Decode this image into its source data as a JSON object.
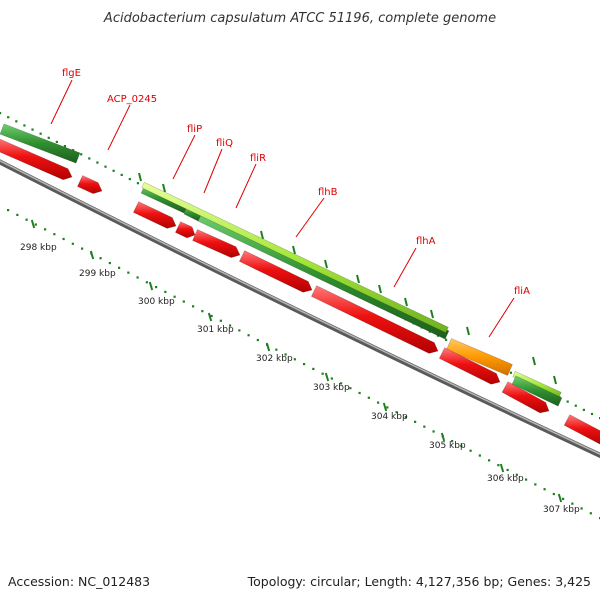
{
  "title": "Acidobacterium capsulatum ATCC 51196, complete genome",
  "footer": {
    "accession": "Accession: NC_012483",
    "summary": "Topology: circular; Length: 4,127,356 bp; Genes: 3,425"
  },
  "colors": {
    "backbone": "#7a7a7a",
    "cds_red": "#ee1111",
    "gene_dark_green": "#2f8f2f",
    "gene_light_green": "#a6e83a",
    "gene_orange": "#ff9900",
    "label_red": "#dd0000",
    "tick_green": "#1f7f1f"
  },
  "gene_labels": [
    "flgE",
    "ACP_0245",
    "fliP",
    "fliQ",
    "fliR",
    "flhB",
    "flhA",
    "fliA"
  ],
  "kbp_ticks": [
    "298 kbp",
    "299 kbp",
    "300 kbp",
    "301 kbp",
    "302 kbp",
    "303 kbp",
    "304 kbp",
    "305 kbp",
    "306 kbp",
    "307 kbp"
  ]
}
